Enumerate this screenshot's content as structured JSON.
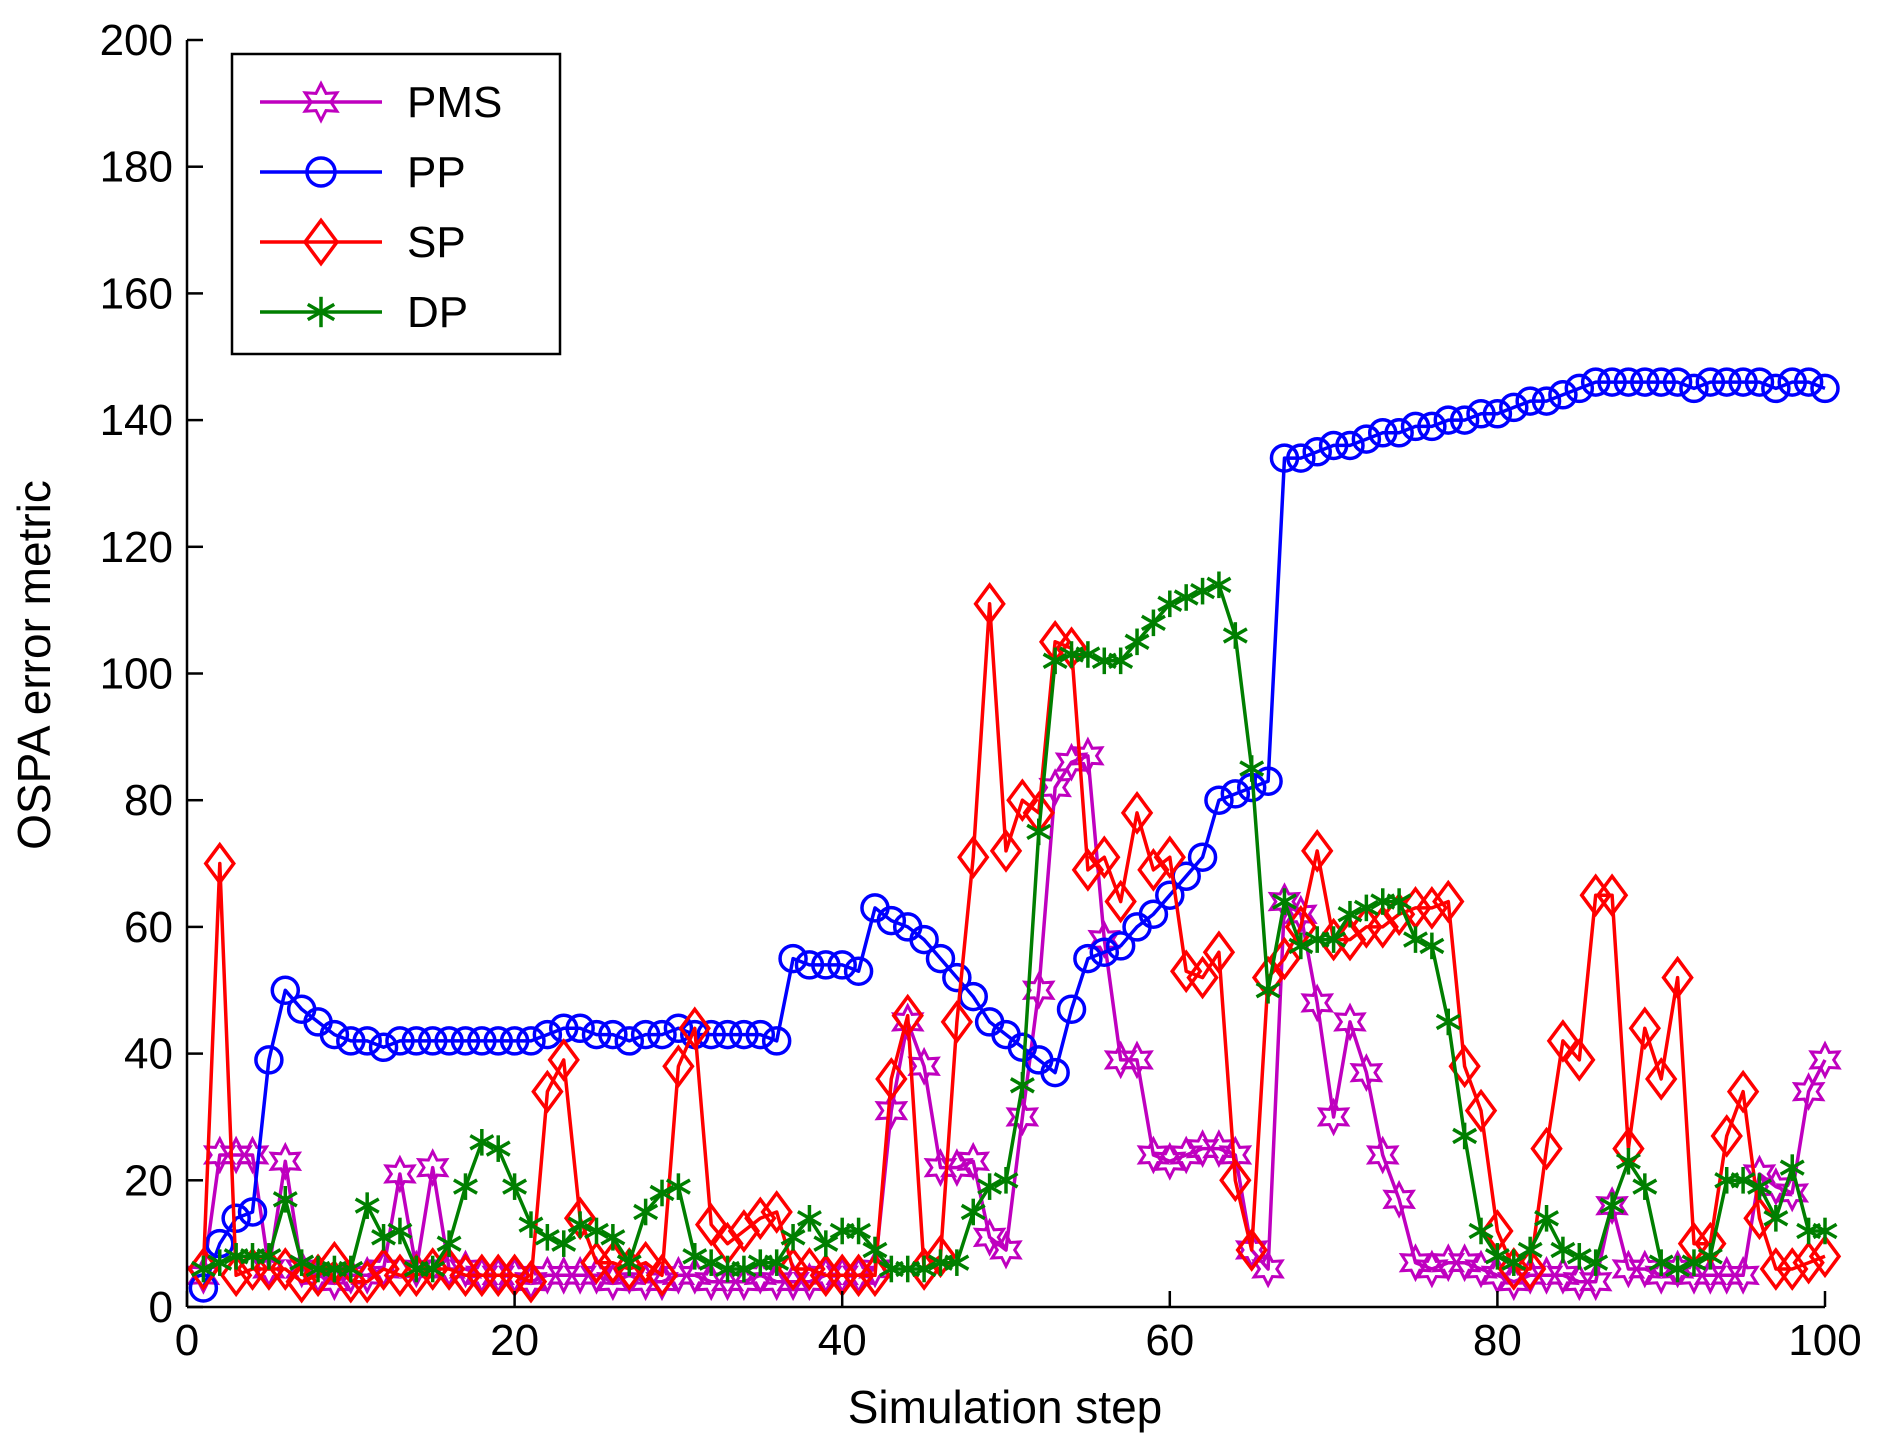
{
  "chart_data": {
    "type": "line",
    "title": "",
    "xlabel": "Simulation step",
    "ylabel": "OSPA error metric",
    "xlim": [
      0,
      100
    ],
    "ylim": [
      0,
      200
    ],
    "xticks": [
      0,
      20,
      40,
      60,
      80,
      100
    ],
    "yticks": [
      0,
      20,
      40,
      60,
      80,
      100,
      120,
      140,
      160,
      180,
      200
    ],
    "grid": false,
    "legend_position": "top-left",
    "series": [
      {
        "name": "PMS",
        "color": "#bf00bf",
        "marker": "hexagram",
        "x": [
          1,
          2,
          3,
          4,
          5,
          6,
          7,
          8,
          9,
          10,
          11,
          12,
          13,
          14,
          15,
          16,
          17,
          18,
          19,
          20,
          21,
          22,
          23,
          24,
          25,
          26,
          27,
          28,
          29,
          30,
          31,
          32,
          33,
          34,
          35,
          36,
          37,
          38,
          39,
          40,
          41,
          42,
          43,
          44,
          45,
          46,
          47,
          48,
          49,
          50,
          51,
          52,
          53,
          54,
          55,
          56,
          57,
          58,
          59,
          60,
          61,
          62,
          63,
          64,
          65,
          66,
          67,
          68,
          69,
          70,
          71,
          72,
          73,
          74,
          75,
          76,
          77,
          78,
          79,
          80,
          81,
          82,
          83,
          84,
          85,
          86,
          87,
          88,
          89,
          90,
          91,
          92,
          93,
          94,
          95,
          96,
          97,
          98,
          99,
          100
        ],
        "values": [
          5,
          24,
          24,
          24,
          6,
          23,
          6,
          5,
          4,
          5,
          5,
          6,
          21,
          6,
          22,
          6,
          6,
          5,
          5,
          5,
          4,
          5,
          5,
          5,
          5,
          4,
          5,
          4,
          4,
          5,
          5,
          4,
          4,
          4,
          5,
          4,
          4,
          4,
          5,
          5,
          5,
          6,
          31,
          45,
          38,
          22,
          22,
          23,
          11,
          9,
          30,
          50,
          82,
          86,
          87,
          58,
          39,
          39,
          24,
          23,
          24,
          25,
          25,
          24,
          9,
          6,
          64,
          62,
          48,
          30,
          45,
          37,
          24,
          17,
          7,
          6,
          7,
          7,
          6,
          5,
          4,
          5,
          5,
          5,
          4,
          4,
          16,
          6,
          6,
          5,
          6,
          5,
          5,
          5,
          5,
          21,
          19,
          18,
          34,
          39
        ]
      },
      {
        "name": "PP",
        "color": "#0000ff",
        "marker": "circle",
        "x": [
          1,
          2,
          3,
          4,
          5,
          6,
          7,
          8,
          9,
          10,
          11,
          12,
          13,
          14,
          15,
          16,
          17,
          18,
          19,
          20,
          21,
          22,
          23,
          24,
          25,
          26,
          27,
          28,
          29,
          30,
          31,
          32,
          33,
          34,
          35,
          36,
          37,
          38,
          39,
          40,
          41,
          42,
          43,
          44,
          45,
          46,
          47,
          48,
          49,
          50,
          51,
          52,
          53,
          54,
          55,
          56,
          57,
          58,
          59,
          60,
          61,
          62,
          63,
          64,
          65,
          66,
          67,
          68,
          69,
          70,
          71,
          72,
          73,
          74,
          75,
          76,
          77,
          78,
          79,
          80,
          81,
          82,
          83,
          84,
          85,
          86,
          87,
          88,
          89,
          90,
          91,
          92,
          93,
          94,
          95,
          96,
          97,
          98,
          99,
          100
        ],
        "values": [
          3,
          10,
          14,
          15,
          39,
          50,
          47,
          45,
          43,
          42,
          42,
          41,
          42,
          42,
          42,
          42,
          42,
          42,
          42,
          42,
          42,
          43,
          44,
          44,
          43,
          43,
          42,
          43,
          43,
          44,
          43,
          43,
          43,
          43,
          43,
          42,
          55,
          54,
          54,
          54,
          53,
          63,
          61,
          60,
          58,
          55,
          52,
          49,
          45,
          43,
          41,
          39,
          37,
          47,
          55,
          56,
          57,
          60,
          62,
          65,
          68,
          71,
          80,
          81,
          82,
          83,
          134,
          134,
          135,
          136,
          136,
          137,
          138,
          138,
          139,
          139,
          140,
          140,
          141,
          141,
          142,
          143,
          143,
          144,
          145,
          146,
          146,
          146,
          146,
          146,
          146,
          145,
          146,
          146,
          146,
          146,
          145,
          146,
          146,
          145
        ]
      },
      {
        "name": "SP",
        "color": "#ff0000",
        "marker": "diamond",
        "x": [
          1,
          2,
          3,
          4,
          5,
          6,
          7,
          8,
          9,
          10,
          11,
          12,
          13,
          14,
          15,
          16,
          17,
          18,
          19,
          20,
          21,
          22,
          23,
          24,
          25,
          26,
          27,
          28,
          29,
          30,
          31,
          32,
          33,
          34,
          35,
          36,
          37,
          38,
          39,
          40,
          41,
          42,
          43,
          44,
          45,
          46,
          47,
          48,
          49,
          50,
          51,
          52,
          53,
          54,
          55,
          56,
          57,
          58,
          59,
          60,
          61,
          62,
          63,
          64,
          65,
          66,
          67,
          68,
          69,
          70,
          71,
          72,
          73,
          74,
          75,
          76,
          77,
          78,
          79,
          80,
          81,
          82,
          83,
          84,
          85,
          86,
          87,
          88,
          89,
          90,
          91,
          92,
          93,
          94,
          95,
          96,
          97,
          98,
          99,
          100
        ],
        "values": [
          6,
          70,
          5,
          6,
          6,
          6,
          4,
          5,
          7,
          4,
          4,
          6,
          5,
          5,
          6,
          6,
          5,
          5,
          5,
          5,
          4,
          34,
          39,
          14,
          7,
          7,
          6,
          7,
          5,
          38,
          44,
          13,
          10,
          12,
          14,
          15,
          6,
          6,
          5,
          5,
          5,
          5,
          36,
          46,
          6,
          8,
          45,
          71,
          111,
          72,
          80,
          78,
          105,
          104,
          69,
          71,
          64,
          78,
          69,
          71,
          53,
          52,
          56,
          20,
          9,
          52,
          55,
          60,
          72,
          58,
          58,
          60,
          60,
          62,
          63,
          63,
          64,
          38,
          31,
          12,
          6,
          6,
          25,
          42,
          39,
          65,
          65,
          25,
          44,
          36,
          52,
          10,
          10,
          27,
          34,
          14,
          6,
          6,
          7,
          8
        ]
      },
      {
        "name": "DP",
        "color": "#007f00",
        "marker": "asterisk",
        "x": [
          1,
          2,
          3,
          4,
          5,
          6,
          7,
          8,
          9,
          10,
          11,
          12,
          13,
          14,
          15,
          16,
          17,
          18,
          19,
          20,
          21,
          22,
          23,
          24,
          25,
          26,
          27,
          28,
          29,
          30,
          31,
          32,
          33,
          34,
          35,
          36,
          37,
          38,
          39,
          40,
          41,
          42,
          43,
          44,
          45,
          46,
          47,
          48,
          49,
          50,
          51,
          52,
          53,
          54,
          55,
          56,
          57,
          58,
          59,
          60,
          61,
          62,
          63,
          64,
          65,
          66,
          67,
          68,
          69,
          70,
          71,
          72,
          73,
          74,
          75,
          76,
          77,
          78,
          79,
          80,
          81,
          82,
          83,
          84,
          85,
          86,
          87,
          88,
          89,
          90,
          91,
          92,
          93,
          94,
          95,
          96,
          97,
          98,
          99,
          100
        ],
        "values": [
          6,
          7,
          8,
          8,
          8,
          17,
          7,
          6,
          6,
          6,
          16,
          11,
          12,
          6,
          6,
          10,
          19,
          26,
          25,
          19,
          13,
          11,
          10,
          13,
          12,
          11,
          7,
          15,
          18,
          19,
          8,
          7,
          6,
          6,
          7,
          7,
          11,
          14,
          10,
          12,
          12,
          9,
          6,
          6,
          6,
          7,
          7,
          15,
          19,
          20,
          35,
          75,
          102,
          103,
          103,
          102,
          102,
          105,
          108,
          111,
          112,
          113,
          114,
          106,
          85,
          50,
          64,
          57,
          58,
          58,
          62,
          63,
          64,
          64,
          58,
          57,
          45,
          27,
          12,
          8,
          7,
          9,
          14,
          9,
          8,
          7,
          16,
          23,
          19,
          7,
          6,
          7,
          8,
          20,
          20,
          19,
          14,
          22,
          12,
          12
        ]
      }
    ]
  }
}
